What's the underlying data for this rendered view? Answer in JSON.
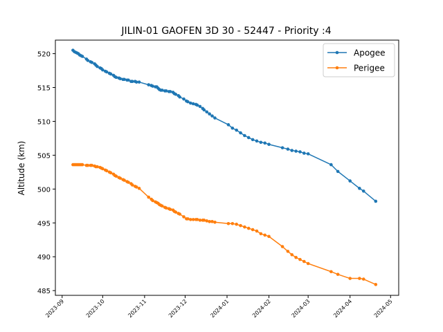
{
  "chart_data": {
    "type": "line",
    "title": "JILIN-01 GAOFEN 3D 30 - 52447 - Priority :4",
    "xlabel": "",
    "ylabel": "Altitude (km)",
    "xlim": [
      "2023-08-27",
      "2024-05-07"
    ],
    "ylim": [
      484.3,
      522.0
    ],
    "x_ticks": [
      "2023-09-01",
      "2023-10-01",
      "2023-11-01",
      "2023-12-01",
      "2024-01-01",
      "2024-02-01",
      "2024-03-01",
      "2024-04-01",
      "2024-05-01"
    ],
    "x_tick_labels": [
      "2023-09",
      "2023-10",
      "2023-11",
      "2023-12",
      "2024-01",
      "2024-02",
      "2024-03",
      "2024-04",
      "2024-05"
    ],
    "y_ticks": [
      485,
      490,
      495,
      500,
      505,
      510,
      515,
      520
    ],
    "y_tick_labels": [
      "485",
      "490",
      "495",
      "500",
      "505",
      "510",
      "515",
      "520"
    ],
    "grid": false,
    "legend_position": "top-right",
    "series": [
      {
        "name": "Apogee",
        "color": "#1f77b4",
        "x": [
          "2023-09-09",
          "2023-09-10",
          "2023-09-11",
          "2023-09-12",
          "2023-09-13",
          "2023-09-14",
          "2023-09-15",
          "2023-09-16",
          "2023-09-19",
          "2023-09-20",
          "2023-09-22",
          "2023-09-23",
          "2023-09-25",
          "2023-09-26",
          "2023-09-27",
          "2023-09-29",
          "2023-09-30",
          "2023-10-01",
          "2023-10-03",
          "2023-10-04",
          "2023-10-06",
          "2023-10-07",
          "2023-10-09",
          "2023-10-10",
          "2023-10-11",
          "2023-10-13",
          "2023-10-14",
          "2023-10-16",
          "2023-10-17",
          "2023-10-19",
          "2023-10-20",
          "2023-10-22",
          "2023-10-23",
          "2023-10-25",
          "2023-10-26",
          "2023-10-28",
          "2023-11-04",
          "2023-11-06",
          "2023-11-07",
          "2023-11-09",
          "2023-11-10",
          "2023-11-11",
          "2023-11-12",
          "2023-11-13",
          "2023-11-14",
          "2023-11-16",
          "2023-11-17",
          "2023-11-19",
          "2023-11-20",
          "2023-11-22",
          "2023-11-23",
          "2023-11-24",
          "2023-11-26",
          "2023-11-27",
          "2023-11-30",
          "2023-12-02",
          "2023-12-03",
          "2023-12-05",
          "2023-12-07",
          "2023-12-09",
          "2023-12-10",
          "2023-12-12",
          "2023-12-14",
          "2023-12-15",
          "2023-12-17",
          "2023-12-19",
          "2023-12-21",
          "2023-12-23",
          "2024-01-02",
          "2024-01-05",
          "2024-01-08",
          "2024-01-11",
          "2024-01-14",
          "2024-01-17",
          "2024-01-20",
          "2024-01-23",
          "2024-01-26",
          "2024-01-29",
          "2024-02-01",
          "2024-02-11",
          "2024-02-15",
          "2024-02-18",
          "2024-02-21",
          "2024-02-24",
          "2024-02-27",
          "2024-03-01",
          "2024-03-18",
          "2024-03-23",
          "2024-04-01",
          "2024-04-08",
          "2024-04-11",
          "2024-04-20"
        ],
        "values": [
          520.5,
          520.3,
          520.2,
          520.1,
          520.0,
          519.8,
          519.7,
          519.6,
          519.2,
          519.0,
          518.8,
          518.7,
          518.5,
          518.3,
          518.1,
          517.9,
          517.8,
          517.6,
          517.4,
          517.3,
          517.1,
          517.0,
          516.8,
          516.6,
          516.5,
          516.4,
          516.3,
          516.2,
          516.2,
          516.1,
          516.1,
          515.9,
          515.9,
          515.9,
          515.8,
          515.8,
          515.4,
          515.3,
          515.2,
          515.1,
          515.1,
          514.9,
          514.7,
          514.6,
          514.6,
          514.5,
          514.5,
          514.4,
          514.4,
          514.3,
          514.1,
          514.0,
          513.8,
          513.6,
          513.3,
          513.0,
          512.9,
          512.7,
          512.6,
          512.5,
          512.4,
          512.2,
          511.9,
          511.7,
          511.4,
          511.1,
          510.8,
          510.5,
          509.5,
          509.0,
          508.7,
          508.3,
          507.9,
          507.6,
          507.3,
          507.1,
          506.9,
          506.8,
          506.6,
          506.1,
          505.9,
          505.7,
          505.6,
          505.5,
          505.3,
          505.2,
          503.6,
          502.6,
          501.2,
          500.1,
          499.7,
          498.2
        ]
      },
      {
        "name": "Perigee",
        "color": "#ff7f0e",
        "x": [
          "2023-09-09",
          "2023-09-10",
          "2023-09-11",
          "2023-09-12",
          "2023-09-13",
          "2023-09-14",
          "2023-09-15",
          "2023-09-16",
          "2023-09-19",
          "2023-09-20",
          "2023-09-22",
          "2023-09-23",
          "2023-09-25",
          "2023-09-26",
          "2023-09-27",
          "2023-09-29",
          "2023-09-30",
          "2023-10-01",
          "2023-10-03",
          "2023-10-04",
          "2023-10-06",
          "2023-10-07",
          "2023-10-09",
          "2023-10-10",
          "2023-10-11",
          "2023-10-13",
          "2023-10-14",
          "2023-10-16",
          "2023-10-17",
          "2023-10-19",
          "2023-10-20",
          "2023-10-22",
          "2023-10-23",
          "2023-10-25",
          "2023-10-26",
          "2023-10-28",
          "2023-11-04",
          "2023-11-06",
          "2023-11-07",
          "2023-11-09",
          "2023-11-10",
          "2023-11-11",
          "2023-11-12",
          "2023-11-13",
          "2023-11-14",
          "2023-11-16",
          "2023-11-17",
          "2023-11-19",
          "2023-11-20",
          "2023-11-22",
          "2023-11-23",
          "2023-11-24",
          "2023-11-26",
          "2023-11-27",
          "2023-11-30",
          "2023-12-02",
          "2023-12-03",
          "2023-12-05",
          "2023-12-07",
          "2023-12-09",
          "2023-12-10",
          "2023-12-12",
          "2023-12-14",
          "2023-12-15",
          "2023-12-17",
          "2023-12-19",
          "2023-12-21",
          "2023-12-23",
          "2024-01-02",
          "2024-01-05",
          "2024-01-08",
          "2024-01-11",
          "2024-01-14",
          "2024-01-17",
          "2024-01-20",
          "2024-01-23",
          "2024-01-26",
          "2024-01-29",
          "2024-02-01",
          "2024-02-11",
          "2024-02-15",
          "2024-02-18",
          "2024-02-21",
          "2024-02-24",
          "2024-02-27",
          "2024-03-01",
          "2024-03-18",
          "2024-03-23",
          "2024-04-01",
          "2024-04-08",
          "2024-04-11",
          "2024-04-20"
        ],
        "values": [
          503.6,
          503.6,
          503.6,
          503.6,
          503.6,
          503.6,
          503.6,
          503.6,
          503.5,
          503.5,
          503.5,
          503.5,
          503.4,
          503.3,
          503.3,
          503.2,
          503.1,
          503.0,
          502.8,
          502.7,
          502.5,
          502.4,
          502.2,
          502.0,
          501.9,
          501.7,
          501.6,
          501.4,
          501.3,
          501.1,
          501.0,
          500.8,
          500.6,
          500.4,
          500.3,
          500.1,
          498.8,
          498.5,
          498.3,
          498.1,
          498.0,
          497.9,
          497.7,
          497.6,
          497.5,
          497.3,
          497.2,
          497.1,
          497.0,
          496.9,
          496.7,
          496.6,
          496.4,
          496.3,
          495.9,
          495.6,
          495.6,
          495.5,
          495.5,
          495.5,
          495.5,
          495.4,
          495.4,
          495.4,
          495.3,
          495.2,
          495.2,
          495.1,
          494.9,
          494.9,
          494.8,
          494.6,
          494.4,
          494.2,
          494.0,
          493.8,
          493.4,
          493.2,
          493.0,
          491.5,
          490.8,
          490.3,
          489.9,
          489.6,
          489.3,
          489.0,
          487.8,
          487.4,
          486.8,
          486.8,
          486.7,
          485.9
        ]
      }
    ]
  }
}
